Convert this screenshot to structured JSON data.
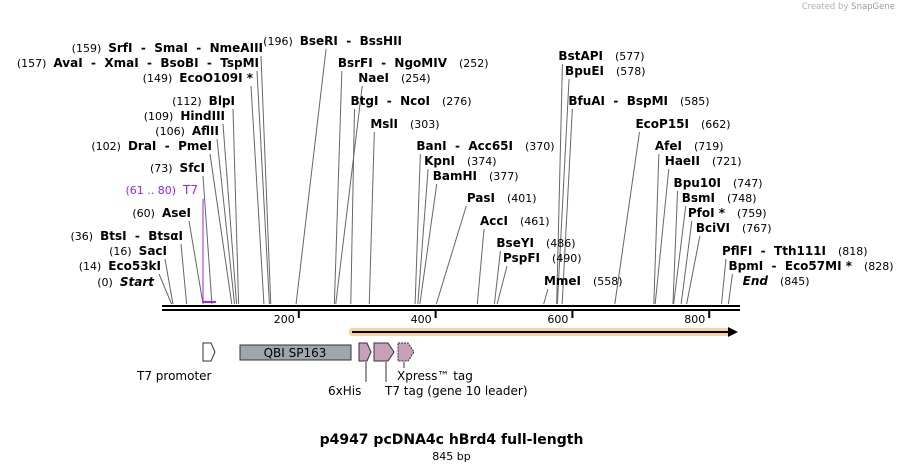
{
  "credit": {
    "prefix": "Created by",
    "brand": "SnapGene"
  },
  "title": "p4947 pcDNA4c hBrd4 full-length",
  "length_label": "845 bp",
  "sequence_length": 845,
  "ticks": [
    "200",
    "400",
    "600",
    "800"
  ],
  "colors": {
    "orf": "#f5a623",
    "qbi": "#a0a6b0",
    "tag": "#c8a0b8",
    "t7_primer": "#a020f0"
  },
  "sites": [
    {
      "names": [
        {
          "n": "SrfI"
        },
        {
          "n": "SmaI"
        },
        {
          "n": "NmeAIII"
        }
      ],
      "pos": "(159)",
      "p": 159
    },
    {
      "names": [
        {
          "n": "AvaI"
        },
        {
          "n": "XmaI"
        },
        {
          "n": "BsoBI"
        },
        {
          "n": "TspMI"
        }
      ],
      "pos": "(157)",
      "p": 157
    },
    {
      "names": [
        {
          "n": "EcoO109I *"
        }
      ],
      "pos": "(149)",
      "p": 149
    },
    {
      "names": [
        {
          "n": "BlpI"
        }
      ],
      "pos": "(112)",
      "p": 112
    },
    {
      "names": [
        {
          "n": "HindIII"
        }
      ],
      "pos": "(109)",
      "p": 109
    },
    {
      "names": [
        {
          "n": "AflII"
        }
      ],
      "pos": "(106)",
      "p": 106
    },
    {
      "names": [
        {
          "n": "DraI"
        },
        {
          "n": "PmeI"
        }
      ],
      "pos": "(102)",
      "p": 102
    },
    {
      "names": [
        {
          "n": "SfcI"
        }
      ],
      "pos": "(73)",
      "p": 73
    },
    {
      "names": [
        {
          "n": "T7"
        }
      ],
      "pos": "(61 .. 80)",
      "p": 61,
      "primer": true
    },
    {
      "names": [
        {
          "n": "AseI"
        }
      ],
      "pos": "(60)",
      "p": 60
    },
    {
      "names": [
        {
          "n": "BtsI"
        },
        {
          "n": "BtsαI"
        }
      ],
      "pos": "(36)",
      "p": 36
    },
    {
      "names": [
        {
          "n": "SacI"
        }
      ],
      "pos": "(16)",
      "p": 16
    },
    {
      "names": [
        {
          "n": "Eco53kI"
        }
      ],
      "pos": "(14)",
      "p": 14
    },
    {
      "names": [
        {
          "n": "Start",
          "italic": true
        }
      ],
      "pos": "(0)",
      "p": 0
    },
    {
      "names": [
        {
          "n": "BseRI"
        },
        {
          "n": "BssHII"
        }
      ],
      "pos": "(196)",
      "p": 196
    },
    {
      "names": [
        {
          "n": "BsrFI"
        },
        {
          "n": "NgoMIV"
        }
      ],
      "pos": "(252)",
      "p": 252
    },
    {
      "names": [
        {
          "n": "NaeI"
        }
      ],
      "pos": "(254)",
      "p": 254
    },
    {
      "names": [
        {
          "n": "BtgI"
        },
        {
          "n": "NcoI"
        }
      ],
      "pos": "(276)",
      "p": 276
    },
    {
      "names": [
        {
          "n": "MslI"
        }
      ],
      "pos": "(303)",
      "p": 303
    },
    {
      "names": [
        {
          "n": "BanI"
        },
        {
          "n": "Acc65I"
        }
      ],
      "pos": "(370)",
      "p": 370
    },
    {
      "names": [
        {
          "n": "KpnI"
        }
      ],
      "pos": "(374)",
      "p": 374
    },
    {
      "names": [
        {
          "n": "BamHI"
        }
      ],
      "pos": "(377)",
      "p": 377
    },
    {
      "names": [
        {
          "n": "PasI"
        }
      ],
      "pos": "(401)",
      "p": 401
    },
    {
      "names": [
        {
          "n": "AccI"
        }
      ],
      "pos": "(461)",
      "p": 461
    },
    {
      "names": [
        {
          "n": "BseYI"
        }
      ],
      "pos": "(486)",
      "p": 486
    },
    {
      "names": [
        {
          "n": "PspFI"
        }
      ],
      "pos": "(490)",
      "p": 490
    },
    {
      "names": [
        {
          "n": "MmeI"
        }
      ],
      "pos": "(558)",
      "p": 558
    },
    {
      "names": [
        {
          "n": "BstAPI"
        }
      ],
      "pos": "(577)",
      "p": 577
    },
    {
      "names": [
        {
          "n": "BpuEI"
        }
      ],
      "pos": "(578)",
      "p": 578
    },
    {
      "names": [
        {
          "n": "BfuAI"
        },
        {
          "n": "BspMI"
        }
      ],
      "pos": "(585)",
      "p": 585
    },
    {
      "names": [
        {
          "n": "EcoP15I"
        }
      ],
      "pos": "(662)",
      "p": 662
    },
    {
      "names": [
        {
          "n": "AfeI"
        }
      ],
      "pos": "(719)",
      "p": 719
    },
    {
      "names": [
        {
          "n": "HaeII"
        }
      ],
      "pos": "(721)",
      "p": 721
    },
    {
      "names": [
        {
          "n": "Bpu10I"
        }
      ],
      "pos": "(747)",
      "p": 747
    },
    {
      "names": [
        {
          "n": "BsmI"
        }
      ],
      "pos": "(748)",
      "p": 748
    },
    {
      "names": [
        {
          "n": "PfoI *"
        }
      ],
      "pos": "(759)",
      "p": 759
    },
    {
      "names": [
        {
          "n": "BciVI"
        }
      ],
      "pos": "(767)",
      "p": 767
    },
    {
      "names": [
        {
          "n": "PflFI"
        },
        {
          "n": "Tth111I"
        }
      ],
      "pos": "(818)",
      "p": 818
    },
    {
      "names": [
        {
          "n": "BpmI"
        },
        {
          "n": "Eco57MI *"
        }
      ],
      "pos": "(828)",
      "p": 828
    },
    {
      "names": [
        {
          "n": "End",
          "italic": true
        }
      ],
      "pos": "(845)",
      "p": 845
    }
  ],
  "features": {
    "t7_promoter": "T7 promoter",
    "qbi": "QBI SP163",
    "his": "6xHis",
    "t7tag": "T7 tag (gene 10 leader)",
    "xpress": "Xpress™ tag"
  }
}
